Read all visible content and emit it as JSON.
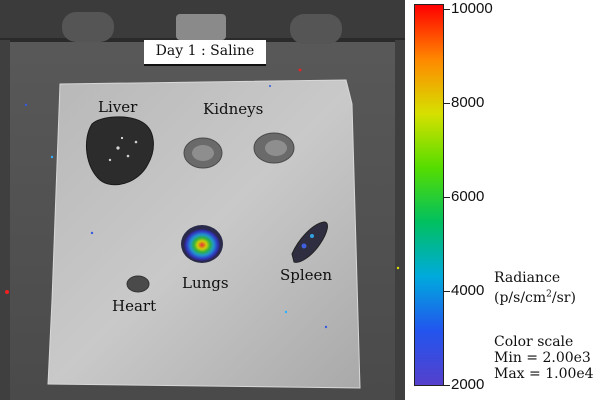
{
  "image": {
    "title": "Day 1 : Saline",
    "organs": [
      {
        "key": "liver",
        "label": "Liver"
      },
      {
        "key": "kidneys",
        "label": "Kidneys"
      },
      {
        "key": "lungs",
        "label": "Lungs"
      },
      {
        "key": "heart",
        "label": "Heart"
      },
      {
        "key": "spleen",
        "label": "Spleen"
      }
    ]
  },
  "colorbar": {
    "min_value": 2000,
    "max_value": 10000,
    "ticks": [
      "10000",
      "8000",
      "6000",
      "4000",
      "2000"
    ],
    "colors": [
      "#ff0000",
      "#ff8800",
      "#d6e000",
      "#55dd00",
      "#00c060",
      "#00aadd",
      "#2255ee",
      "#5540cc"
    ],
    "radiance_title": "Radiance",
    "radiance_unit_prefix": "(p/s/cm",
    "radiance_unit_exp": "2",
    "radiance_unit_suffix": "/sr)",
    "color_scale_title": "Color scale",
    "min_text": "Min = 2.00e3",
    "max_text": "Max = 1.00e4"
  }
}
